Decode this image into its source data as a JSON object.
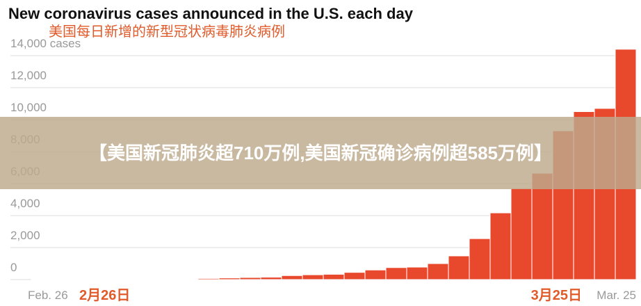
{
  "chart_data": {
    "type": "bar",
    "title": "New coronavirus cases announced in the U.S. each day",
    "subtitle": "美国每日新增的新型冠状病毒肺炎病例",
    "categories": [
      "Feb. 26",
      null,
      null,
      null,
      null,
      null,
      null,
      null,
      null,
      null,
      null,
      null,
      null,
      null,
      null,
      null,
      null,
      null,
      null,
      null,
      null,
      null,
      null,
      null,
      null,
      null,
      null,
      null,
      "Mar. 25"
    ],
    "x_labels_cn": [
      "2月26日",
      "3月25日"
    ],
    "values": [
      2,
      3,
      5,
      10,
      20,
      25,
      30,
      40,
      70,
      100,
      130,
      150,
      250,
      300,
      330,
      450,
      600,
      750,
      780,
      1000,
      1480,
      2560,
      4170,
      5700,
      6650,
      9300,
      10500,
      10700,
      14400
    ],
    "color": "#e8482c",
    "ylim": [
      0,
      14000
    ],
    "yticks": [
      0,
      {
        "value": 2000,
        "label": "2,000"
      },
      {
        "value": 4000,
        "label": "4,000"
      },
      {
        "value": 6000,
        "label": "6,000"
      },
      {
        "value": 8000,
        "label": "8,000"
      },
      {
        "value": 10000,
        "label": "10,000"
      },
      {
        "value": 12000,
        "label": "12,000"
      },
      {
        "value": 14000,
        "label": "14,000 cases"
      }
    ],
    "grid": true
  },
  "banner": "【美国新冠肺炎超710万例,美国新冠确诊病例超585万例】"
}
